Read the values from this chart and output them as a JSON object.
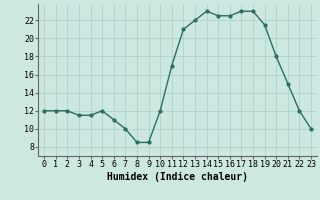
{
  "x": [
    0,
    1,
    2,
    3,
    4,
    5,
    6,
    7,
    8,
    9,
    10,
    11,
    12,
    13,
    14,
    15,
    16,
    17,
    18,
    19,
    20,
    21,
    22,
    23
  ],
  "y": [
    12,
    12,
    12,
    11.5,
    11.5,
    12,
    11,
    10,
    8.5,
    8.5,
    12,
    17,
    21,
    22,
    23,
    22.5,
    22.5,
    23,
    23,
    21.5,
    18,
    15,
    12,
    10
  ],
  "line_color": "#2d6e5e",
  "marker_color": "#2d6e5e",
  "bg_color": "#cce8e0",
  "grid_color": "#aacfc7",
  "xlabel": "Humidex (Indice chaleur)",
  "xlim": [
    -0.5,
    23.5
  ],
  "ylim": [
    7,
    23.8
  ],
  "yticks": [
    8,
    10,
    12,
    14,
    16,
    18,
    20,
    22
  ],
  "xticks": [
    0,
    1,
    2,
    3,
    4,
    5,
    6,
    7,
    8,
    9,
    10,
    11,
    12,
    13,
    14,
    15,
    16,
    17,
    18,
    19,
    20,
    21,
    22,
    23
  ],
  "fontsize_label": 7,
  "fontsize_tick": 6,
  "marker_size": 2.0,
  "line_width": 1.0
}
